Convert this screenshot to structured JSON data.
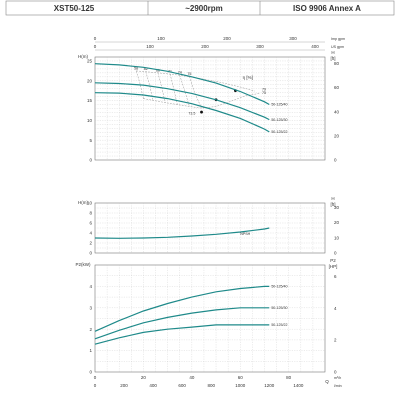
{
  "header": {
    "model": "XST50-125",
    "speed": "~2900rpm",
    "standard": "ISO 9906   Annex A"
  },
  "chart_data": [
    {
      "type": "line",
      "panel": "head",
      "xlabel": "Q",
      "x_top_scales": [
        {
          "unit": "Imp gpm",
          "ticks": [
            0,
            100,
            200,
            300
          ],
          "per_m3h": 3.667
        },
        {
          "unit": "US gpm",
          "ticks": [
            0,
            100,
            200,
            300,
            400
          ],
          "per_m3h": 4.403
        }
      ],
      "xlim": [
        0,
        95
      ],
      "y_left": {
        "label": "H(m)",
        "lim": [
          0,
          26
        ],
        "ticks": [
          0,
          5,
          10,
          15,
          20,
          25
        ]
      },
      "y_right": {
        "label": "H [ft]",
        "ticks": [
          0,
          20,
          40,
          60,
          80
        ],
        "per_m": 3.281
      },
      "series": [
        {
          "name": "50-125/40",
          "x": [
            0,
            10,
            20,
            30,
            40,
            50,
            60,
            70,
            72
          ],
          "y": [
            24.3,
            24.0,
            23.4,
            22.4,
            21.0,
            19.4,
            17.3,
            14.7,
            14.0
          ]
        },
        {
          "name": "50-125/30",
          "x": [
            0,
            10,
            20,
            30,
            40,
            50,
            60,
            70,
            72
          ],
          "y": [
            19.5,
            19.3,
            18.9,
            18.0,
            16.8,
            15.2,
            13.2,
            10.8,
            10.2
          ]
        },
        {
          "name": "50-125/22",
          "x": [
            0,
            10,
            20,
            30,
            40,
            50,
            60,
            70,
            72
          ],
          "y": [
            17.0,
            16.9,
            16.4,
            15.5,
            14.2,
            12.5,
            10.5,
            7.8,
            7.1
          ]
        }
      ],
      "efficiency": {
        "label": "η [%]",
        "values": [
          "58",
          "62",
          "66",
          "71",
          "74",
          "75",
          "73.5"
        ],
        "lines": [
          {
            "label": "58",
            "x": [
              17,
              18.5,
              20
            ],
            "y": [
              22.5,
              19.5,
              15.5
            ]
          },
          {
            "label": "62",
            "x": [
              21,
              22.5,
              24
            ],
            "y": [
              22.3,
              19.0,
              15.0
            ]
          },
          {
            "label": "66",
            "x": [
              26,
              27.5,
              29
            ],
            "y": [
              22.0,
              18.5,
              14.5
            ]
          },
          {
            "label": "71",
            "x": [
              31,
              32.5,
              34
            ],
            "y": [
              21.7,
              18.0,
              14.0
            ]
          },
          {
            "label": "74",
            "x": [
              35,
              37,
              39
            ],
            "y": [
              21.4,
              17.6,
              13.5
            ]
          },
          {
            "label": "75",
            "x": [
              39,
              41,
              44
            ],
            "y": [
              21.1,
              17.2,
              13.1
            ]
          }
        ],
        "markers": [
          {
            "x": 58,
            "y": 17.5
          },
          {
            "x": 50,
            "y": 15.2
          },
          {
            "x": 44,
            "y": 12.1
          }
        ],
        "labels_right": [
          "79",
          "75"
        ]
      }
    },
    {
      "type": "line",
      "panel": "npsh",
      "xlim": [
        0,
        95
      ],
      "y_left": {
        "label": "H(m)",
        "lim": [
          0,
          10
        ],
        "ticks": [
          0,
          2,
          4,
          6,
          8,
          10
        ]
      },
      "y_right": {
        "label": "H [ft]",
        "ticks": [
          0,
          10,
          20,
          30
        ],
        "per_m": 3.281
      },
      "series": [
        {
          "name": "NPSH",
          "x": [
            0,
            10,
            20,
            30,
            40,
            50,
            60,
            70,
            72
          ],
          "y": [
            3.0,
            2.95,
            3.0,
            3.15,
            3.4,
            3.75,
            4.2,
            4.8,
            5.0
          ]
        }
      ]
    },
    {
      "type": "line",
      "panel": "power",
      "xlabel": "Q",
      "xlim": [
        0,
        95
      ],
      "x_bottom_scales": [
        {
          "unit": "m³/h",
          "ticks": [
            0,
            20,
            40,
            60,
            80
          ]
        },
        {
          "unit": "l/min",
          "ticks": [
            0,
            200,
            400,
            600,
            800,
            1000,
            1200,
            1400
          ],
          "per_m3h": 16.667
        }
      ],
      "y_left": {
        "label": "P2(kW)",
        "lim": [
          0,
          5
        ],
        "ticks": [
          0,
          1,
          2,
          3,
          4
        ]
      },
      "y_right": {
        "label": "P2 [HP]",
        "ticks": [
          0,
          2,
          4,
          6
        ],
        "per_kw": 1.341
      },
      "series": [
        {
          "name": "50-125/40",
          "x": [
            0,
            10,
            20,
            30,
            40,
            50,
            60,
            70,
            72
          ],
          "y": [
            1.9,
            2.4,
            2.85,
            3.2,
            3.5,
            3.75,
            3.9,
            4.0,
            4.0
          ]
        },
        {
          "name": "50-125/30",
          "x": [
            0,
            10,
            20,
            30,
            40,
            50,
            60,
            70,
            72
          ],
          "y": [
            1.55,
            1.95,
            2.3,
            2.55,
            2.75,
            2.9,
            3.0,
            3.0,
            3.0
          ]
        },
        {
          "name": "50-125/22",
          "x": [
            0,
            10,
            20,
            30,
            40,
            50,
            60,
            70,
            72
          ],
          "y": [
            1.3,
            1.6,
            1.85,
            2.0,
            2.1,
            2.2,
            2.2,
            2.2,
            2.2
          ]
        }
      ]
    }
  ]
}
